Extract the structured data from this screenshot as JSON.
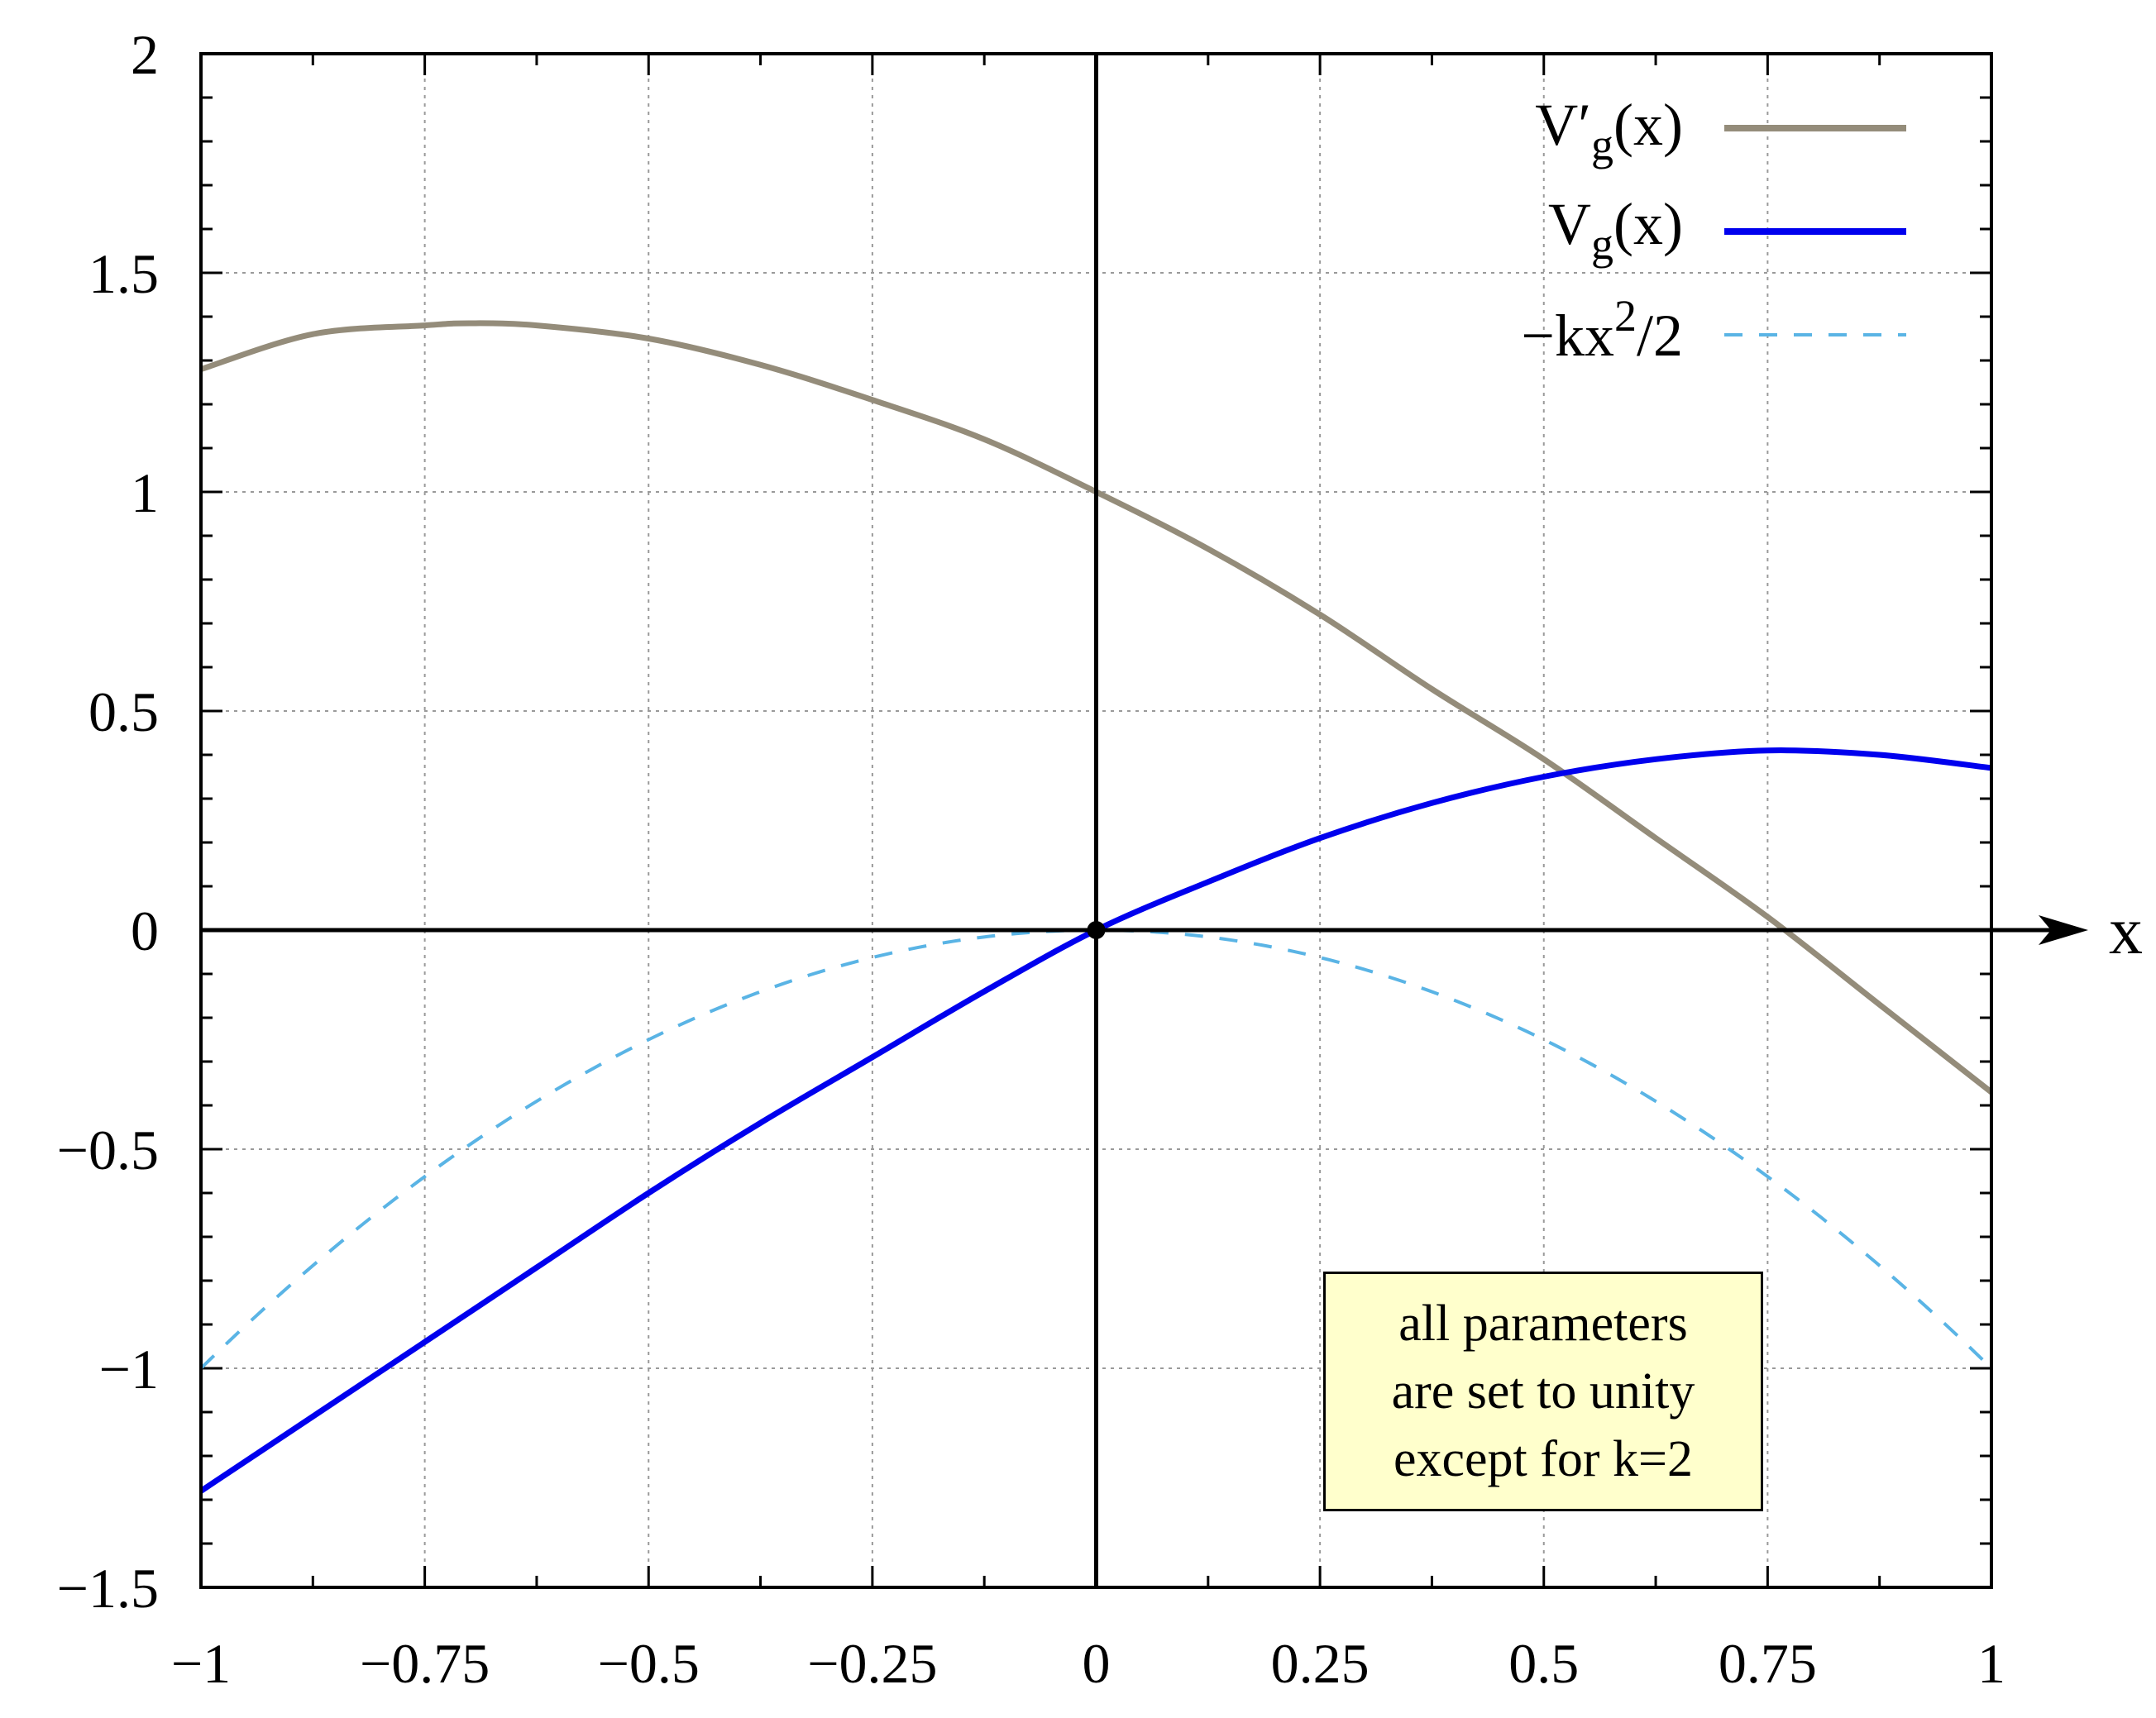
{
  "chart_data": {
    "type": "line",
    "title": "",
    "xlabel": "x",
    "ylabel": "",
    "xlim": [
      -1,
      1
    ],
    "ylim": [
      -1.5,
      2
    ],
    "grid": true,
    "legend_position": "top-right",
    "x_ticks": [
      -1,
      -0.75,
      -0.5,
      -0.25,
      0,
      0.25,
      0.5,
      0.75,
      1
    ],
    "x_tick_labels": [
      "−1",
      "−0.75",
      "−0.5",
      "−0.25",
      "0",
      "0.25",
      "0.5",
      "0.75",
      "1"
    ],
    "y_ticks": [
      -1.5,
      -1,
      -0.5,
      0,
      0.5,
      1,
      1.5,
      2
    ],
    "y_tick_labels": [
      "−1.5",
      "−1",
      "−0.5",
      "0",
      "0.5",
      "1",
      "1.5",
      "2"
    ],
    "series": [
      {
        "name": "V′g(x)",
        "label_main": "V′",
        "label_sub": "g",
        "label_tail": "(x)",
        "color": "#948c7a",
        "style": "solid",
        "x": [
          -1,
          -0.875,
          -0.75,
          -0.7,
          -0.625,
          -0.5,
          -0.375,
          -0.25,
          -0.125,
          0,
          0.125,
          0.25,
          0.375,
          0.5,
          0.625,
          0.75,
          0.875,
          1
        ],
        "y": [
          1.28,
          1.36,
          1.38,
          1.385,
          1.38,
          1.35,
          1.29,
          1.21,
          1.12,
          1.0,
          0.87,
          0.72,
          0.55,
          0.39,
          0.21,
          0.03,
          -0.17,
          -0.37
        ]
      },
      {
        "name": "Vg(x)",
        "label_main": "V",
        "label_sub": "g",
        "label_tail": "(x)",
        "color": "#0000ee",
        "style": "solid",
        "x": [
          -1,
          -0.875,
          -0.75,
          -0.625,
          -0.5,
          -0.375,
          -0.25,
          -0.125,
          0,
          0.125,
          0.25,
          0.375,
          0.5,
          0.625,
          0.75,
          0.875,
          1
        ],
        "y": [
          -1.28,
          -1.11,
          -0.94,
          -0.77,
          -0.6,
          -0.44,
          -0.29,
          -0.14,
          0.0,
          0.11,
          0.21,
          0.29,
          0.35,
          0.39,
          0.41,
          0.4,
          0.37
        ]
      },
      {
        "name": "−kx²/2",
        "label_main": "−kx",
        "label_sup": "2",
        "label_tail": "/2",
        "color": "#5ab4e5",
        "style": "dashed",
        "function": "-x^2",
        "x": [
          -1,
          -0.875,
          -0.75,
          -0.625,
          -0.5,
          -0.375,
          -0.25,
          -0.125,
          0,
          0.125,
          0.25,
          0.375,
          0.5,
          0.625,
          0.75,
          0.875,
          1
        ],
        "y": [
          -1,
          -0.7656,
          -0.5625,
          -0.3906,
          -0.25,
          -0.1406,
          -0.0625,
          -0.0156,
          0,
          -0.0156,
          -0.0625,
          -0.1406,
          -0.25,
          -0.3906,
          -0.5625,
          -0.7656,
          -1
        ]
      }
    ],
    "annotations": [
      {
        "type": "point",
        "x": 0,
        "y": 0,
        "color": "#000000"
      }
    ]
  },
  "note": {
    "lines": [
      "all parameters",
      "are set to unity",
      "except for k=2"
    ]
  }
}
